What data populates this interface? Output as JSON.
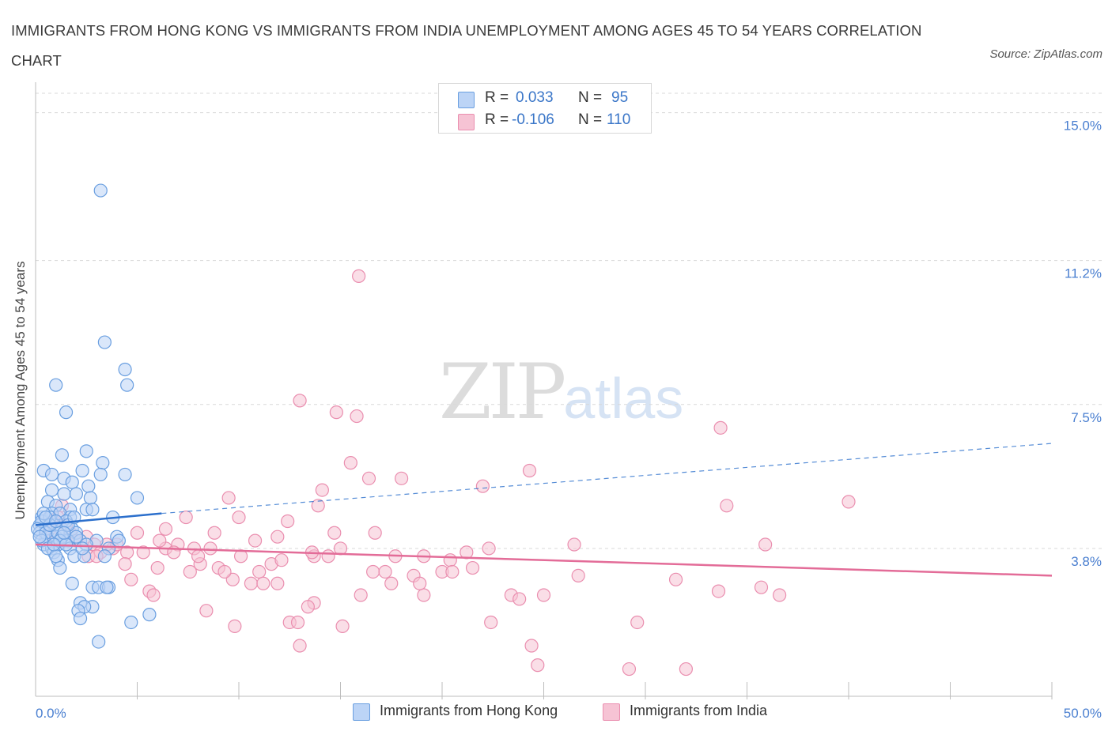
{
  "header": {
    "title": "IMMIGRANTS FROM HONG KONG VS IMMIGRANTS FROM INDIA UNEMPLOYMENT AMONG AGES 45 TO 54 YEARS CORRELATION CHART",
    "source": "Source: ZipAtlas.com"
  },
  "watermark": {
    "zip": "ZIP",
    "atlas": "atlas"
  },
  "legend": {
    "rows": [
      {
        "r_label": "R =",
        "r_value": "0.033",
        "n_label": "N =",
        "n_value": "95"
      },
      {
        "r_label": "R =",
        "r_value": "-0.106",
        "n_label": "N =",
        "n_value": "110"
      }
    ]
  },
  "bottom_legend": {
    "items": [
      {
        "label": "Immigrants from Hong Kong"
      },
      {
        "label": "Immigrants from India"
      }
    ]
  },
  "colors": {
    "hong_kong_fill": "#bcd4f6",
    "hong_kong_stroke": "#6a9fe0",
    "hong_kong_line": "#2b6fcc",
    "india_fill": "#f6c3d4",
    "india_stroke": "#ea8eaf",
    "india_line": "#e36c98",
    "axis_text": "#4a7fd0"
  },
  "chart_data": {
    "type": "scatter",
    "title": "IMMIGRANTS FROM HONG KONG VS IMMIGRANTS FROM INDIA UNEMPLOYMENT AMONG AGES 45 TO 54 YEARS CORRELATION CHART",
    "xlabel": "",
    "ylabel": "Unemployment Among Ages 45 to 54 years",
    "xlim": [
      0,
      50
    ],
    "ylim": [
      0,
      15.5
    ],
    "x_tick_labels": [
      "0.0%",
      "50.0%"
    ],
    "y_ticks": [
      3.8,
      7.5,
      11.2,
      15.0
    ],
    "y_tick_labels": [
      "3.8%",
      "7.5%",
      "11.2%",
      "15.0%"
    ],
    "grid": "horizontal dashed",
    "legend_position": "top-center",
    "series": [
      {
        "name": "Immigrants from Hong Kong",
        "R": 0.033,
        "N": 95,
        "trend": {
          "x0": 0,
          "y0": 4.4,
          "x1": 6.2,
          "y1": 4.7,
          "dashed_to_x": 50,
          "dashed_to_y": 6.5
        },
        "points": [
          [
            3.2,
            13.0
          ],
          [
            3.4,
            9.1
          ],
          [
            4.4,
            8.4
          ],
          [
            4.5,
            8.0
          ],
          [
            1.0,
            8.0
          ],
          [
            1.5,
            7.3
          ],
          [
            2.5,
            6.3
          ],
          [
            1.3,
            6.2
          ],
          [
            0.4,
            5.8
          ],
          [
            0.8,
            5.7
          ],
          [
            2.3,
            5.8
          ],
          [
            3.3,
            6.0
          ],
          [
            1.4,
            5.6
          ],
          [
            1.8,
            5.5
          ],
          [
            2.6,
            5.4
          ],
          [
            3.2,
            5.7
          ],
          [
            4.4,
            5.7
          ],
          [
            0.8,
            5.3
          ],
          [
            1.4,
            5.2
          ],
          [
            2.0,
            5.2
          ],
          [
            2.7,
            5.1
          ],
          [
            5.0,
            5.1
          ],
          [
            0.6,
            5.0
          ],
          [
            1.0,
            4.9
          ],
          [
            1.7,
            4.8
          ],
          [
            2.5,
            4.8
          ],
          [
            2.8,
            4.8
          ],
          [
            0.3,
            4.6
          ],
          [
            0.8,
            4.7
          ],
          [
            1.2,
            4.7
          ],
          [
            1.7,
            4.6
          ],
          [
            3.8,
            4.6
          ],
          [
            0.2,
            4.4
          ],
          [
            0.5,
            4.3
          ],
          [
            0.9,
            4.4
          ],
          [
            1.3,
            4.3
          ],
          [
            1.8,
            4.3
          ],
          [
            2.0,
            4.2
          ],
          [
            0.2,
            4.2
          ],
          [
            0.6,
            4.1
          ],
          [
            1.0,
            4.1
          ],
          [
            1.4,
            4.0
          ],
          [
            1.6,
            4.0
          ],
          [
            2.2,
            4.0
          ],
          [
            3.0,
            4.0
          ],
          [
            4.0,
            4.1
          ],
          [
            4.1,
            4.0
          ],
          [
            0.4,
            3.9
          ],
          [
            0.8,
            3.8
          ],
          [
            1.1,
            3.9
          ],
          [
            1.7,
            3.8
          ],
          [
            2.5,
            3.9
          ],
          [
            3.6,
            3.8
          ],
          [
            0.9,
            3.7
          ],
          [
            1.9,
            3.6
          ],
          [
            2.4,
            3.6
          ],
          [
            3.4,
            3.6
          ],
          [
            1.1,
            3.5
          ],
          [
            1.2,
            3.3
          ],
          [
            1.8,
            2.9
          ],
          [
            2.8,
            2.8
          ],
          [
            3.1,
            2.8
          ],
          [
            3.6,
            2.8
          ],
          [
            3.5,
            2.8
          ],
          [
            2.2,
            2.4
          ],
          [
            2.8,
            2.3
          ],
          [
            2.4,
            2.3
          ],
          [
            2.1,
            2.2
          ],
          [
            2.2,
            2.0
          ],
          [
            5.6,
            2.1
          ],
          [
            4.7,
            1.9
          ],
          [
            3.1,
            1.4
          ],
          [
            0.3,
            4.5
          ],
          [
            0.7,
            4.6
          ],
          [
            1.5,
            4.5
          ],
          [
            0.1,
            4.3
          ],
          [
            0.5,
            4.2
          ],
          [
            1.1,
            4.2
          ],
          [
            0.3,
            4.0
          ],
          [
            1.3,
            4.1
          ],
          [
            0.6,
            3.8
          ],
          [
            1.0,
            3.6
          ],
          [
            1.6,
            4.4
          ],
          [
            2.0,
            4.1
          ],
          [
            0.4,
            4.7
          ],
          [
            0.7,
            4.4
          ],
          [
            1.2,
            4.0
          ],
          [
            0.2,
            4.1
          ],
          [
            0.9,
            3.9
          ],
          [
            1.5,
            3.9
          ],
          [
            1.9,
            4.6
          ],
          [
            2.3,
            3.8
          ],
          [
            0.5,
            4.6
          ],
          [
            1.0,
            4.5
          ],
          [
            1.4,
            4.2
          ]
        ]
      },
      {
        "name": "Immigrants from India",
        "R": -0.106,
        "N": 110,
        "trend": {
          "x0": 0,
          "y0": 3.9,
          "x1": 50,
          "y1": 3.1
        },
        "points": [
          [
            15.9,
            10.8
          ],
          [
            13.0,
            7.6
          ],
          [
            14.8,
            7.3
          ],
          [
            15.8,
            7.2
          ],
          [
            33.7,
            6.9
          ],
          [
            15.5,
            6.0
          ],
          [
            24.3,
            5.8
          ],
          [
            16.4,
            5.6
          ],
          [
            18.0,
            5.6
          ],
          [
            22.0,
            5.4
          ],
          [
            14.1,
            5.3
          ],
          [
            9.5,
            5.1
          ],
          [
            40.0,
            5.0
          ],
          [
            13.9,
            4.9
          ],
          [
            34.0,
            4.9
          ],
          [
            7.4,
            4.6
          ],
          [
            10.0,
            4.6
          ],
          [
            12.4,
            4.5
          ],
          [
            6.4,
            4.3
          ],
          [
            16.7,
            4.2
          ],
          [
            14.7,
            4.2
          ],
          [
            8.8,
            4.2
          ],
          [
            11.9,
            4.1
          ],
          [
            5.0,
            4.2
          ],
          [
            10.8,
            4.0
          ],
          [
            35.9,
            3.9
          ],
          [
            7.0,
            3.9
          ],
          [
            7.8,
            3.8
          ],
          [
            6.4,
            3.8
          ],
          [
            5.3,
            3.7
          ],
          [
            6.8,
            3.7
          ],
          [
            8.6,
            3.8
          ],
          [
            3.8,
            3.8
          ],
          [
            4.5,
            3.7
          ],
          [
            15.0,
            3.8
          ],
          [
            22.3,
            3.8
          ],
          [
            21.2,
            3.7
          ],
          [
            10.1,
            3.6
          ],
          [
            13.7,
            3.6
          ],
          [
            14.4,
            3.6
          ],
          [
            17.7,
            3.6
          ],
          [
            19.1,
            3.6
          ],
          [
            20.4,
            3.5
          ],
          [
            11.6,
            3.4
          ],
          [
            4.4,
            3.4
          ],
          [
            8.1,
            3.4
          ],
          [
            6.0,
            3.3
          ],
          [
            7.6,
            3.2
          ],
          [
            9.0,
            3.3
          ],
          [
            11.0,
            3.2
          ],
          [
            16.6,
            3.2
          ],
          [
            17.2,
            3.2
          ],
          [
            18.6,
            3.1
          ],
          [
            20.0,
            3.2
          ],
          [
            20.5,
            3.2
          ],
          [
            26.7,
            3.1
          ],
          [
            4.7,
            3.0
          ],
          [
            9.7,
            3.0
          ],
          [
            10.6,
            2.9
          ],
          [
            11.9,
            2.9
          ],
          [
            11.2,
            2.9
          ],
          [
            5.6,
            2.7
          ],
          [
            5.8,
            2.6
          ],
          [
            16.0,
            2.6
          ],
          [
            19.1,
            2.6
          ],
          [
            23.4,
            2.6
          ],
          [
            23.8,
            2.5
          ],
          [
            25.0,
            2.6
          ],
          [
            33.6,
            2.7
          ],
          [
            35.7,
            2.8
          ],
          [
            36.6,
            2.6
          ],
          [
            13.7,
            2.4
          ],
          [
            13.4,
            2.3
          ],
          [
            8.4,
            2.2
          ],
          [
            22.4,
            1.9
          ],
          [
            12.5,
            1.9
          ],
          [
            12.9,
            1.9
          ],
          [
            15.1,
            1.8
          ],
          [
            9.8,
            1.8
          ],
          [
            29.6,
            1.9
          ],
          [
            24.4,
            1.3
          ],
          [
            13.0,
            1.3
          ],
          [
            24.7,
            0.8
          ],
          [
            29.2,
            0.7
          ],
          [
            32.0,
            0.7
          ],
          [
            1.3,
            4.9
          ],
          [
            0.9,
            4.5
          ],
          [
            1.7,
            4.2
          ],
          [
            2.5,
            4.1
          ],
          [
            0.5,
            4.1
          ],
          [
            2.9,
            3.9
          ],
          [
            3.5,
            3.9
          ],
          [
            2.6,
            3.6
          ],
          [
            3.2,
            3.7
          ],
          [
            1.5,
            4.4
          ],
          [
            2.0,
            4.0
          ],
          [
            4.0,
            3.9
          ],
          [
            1.1,
            4.6
          ],
          [
            0.7,
            4.3
          ],
          [
            3.0,
            3.6
          ],
          [
            6.1,
            4.0
          ],
          [
            8.0,
            3.6
          ],
          [
            12.1,
            3.5
          ],
          [
            9.3,
            3.2
          ],
          [
            13.6,
            3.7
          ],
          [
            17.5,
            2.9
          ],
          [
            21.5,
            3.3
          ],
          [
            26.5,
            3.9
          ],
          [
            31.5,
            3.0
          ],
          [
            18.9,
            2.9
          ]
        ]
      }
    ]
  }
}
